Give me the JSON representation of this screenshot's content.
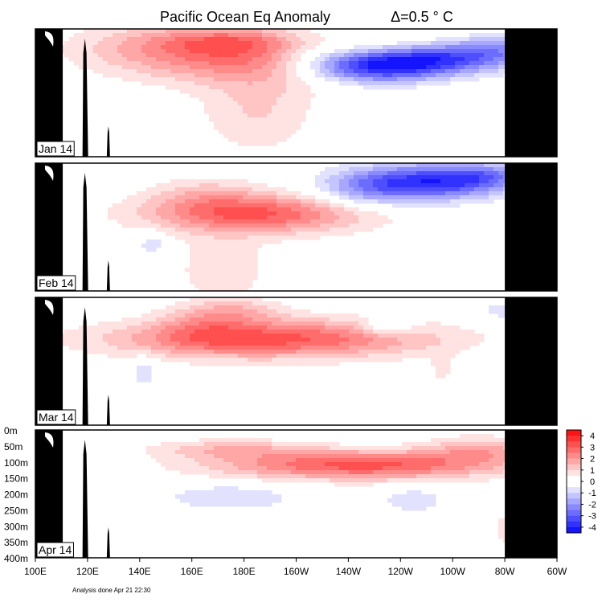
{
  "chart_data": {
    "type": "heatmap",
    "title": "Pacific Ocean Eq Anomaly",
    "interval_label": "Δ=0.5 ° C",
    "x_ticks": [
      "100E",
      "120E",
      "140E",
      "160E",
      "180E",
      "160W",
      "140W",
      "120W",
      "100W",
      "80W",
      "60W"
    ],
    "x_range": [
      100,
      300
    ],
    "y_ticks": [
      "0m",
      "50m",
      "100m",
      "150m",
      "200m",
      "250m",
      "300m",
      "350m",
      "400m"
    ],
    "y_range": [
      0,
      400
    ],
    "colorbar": {
      "ticks": [
        "4",
        "3",
        "2",
        "1",
        "0",
        "-1",
        "-2",
        "-3",
        "-4"
      ],
      "range": [
        -4.5,
        4.5
      ],
      "step": 0.5
    },
    "footer": "Analysis done Apr 21 22:30",
    "panels": [
      {
        "label": "Jan 14",
        "features": [
          {
            "lon": 185,
            "depth": 80,
            "w": 44,
            "h": 90,
            "amp": 2.5
          },
          {
            "lon": 175,
            "depth": 40,
            "w": 28,
            "h": 35,
            "amp": 1.0
          },
          {
            "lon": 145,
            "depth": 60,
            "w": 35,
            "h": 80,
            "amp": 1.0
          },
          {
            "lon": 185,
            "depth": 260,
            "w": 22,
            "h": 130,
            "amp": 1.0
          },
          {
            "lon": 230,
            "depth": 120,
            "w": 26,
            "h": 50,
            "amp": -3.8
          },
          {
            "lon": 255,
            "depth": 95,
            "w": 30,
            "h": 45,
            "amp": -2.8
          },
          {
            "lon": 275,
            "depth": 60,
            "w": 18,
            "h": 40,
            "amp": -1.5
          },
          {
            "lon": 205,
            "depth": 60,
            "w": 20,
            "h": 70,
            "amp": -1.2
          }
        ]
      },
      {
        "label": "Feb 14",
        "features": [
          {
            "lon": 185,
            "depth": 160,
            "w": 42,
            "h": 60,
            "amp": 3.0
          },
          {
            "lon": 165,
            "depth": 100,
            "w": 22,
            "h": 60,
            "amp": 1.0
          },
          {
            "lon": 172,
            "depth": 330,
            "w": 18,
            "h": 110,
            "amp": 0.9
          },
          {
            "lon": 250,
            "depth": 60,
            "w": 28,
            "h": 55,
            "amp": -3.8
          },
          {
            "lon": 273,
            "depth": 40,
            "w": 15,
            "h": 40,
            "amp": -1.5
          },
          {
            "lon": 225,
            "depth": 90,
            "w": 18,
            "h": 60,
            "amp": -1.2
          },
          {
            "lon": 145,
            "depth": 250,
            "w": 5,
            "h": 40,
            "amp": -1.0
          }
        ]
      },
      {
        "label": "Mar 14",
        "features": [
          {
            "lon": 190,
            "depth": 130,
            "w": 60,
            "h": 60,
            "amp": 3.2
          },
          {
            "lon": 165,
            "depth": 80,
            "w": 18,
            "h": 70,
            "amp": 1.0
          },
          {
            "lon": 178,
            "depth": 40,
            "w": 18,
            "h": 40,
            "amp": 1.0
          },
          {
            "lon": 235,
            "depth": 95,
            "w": 10,
            "h": 25,
            "amp": -1.3
          },
          {
            "lon": 280,
            "depth": 40,
            "w": 8,
            "h": 25,
            "amp": -1.0
          },
          {
            "lon": 142,
            "depth": 230,
            "w": 5,
            "h": 50,
            "amp": -0.9
          },
          {
            "lon": 256,
            "depth": 220,
            "w": 4,
            "h": 50,
            "amp": 0.8
          }
        ]
      },
      {
        "label": "Apr 14",
        "features": [
          {
            "lon": 225,
            "depth": 110,
            "w": 55,
            "h": 45,
            "amp": 3.2
          },
          {
            "lon": 175,
            "depth": 60,
            "w": 30,
            "h": 30,
            "amp": 1.3
          },
          {
            "lon": 270,
            "depth": 60,
            "w": 20,
            "h": 40,
            "amp": 1.5
          },
          {
            "lon": 175,
            "depth": 210,
            "w": 25,
            "h": 40,
            "amp": -1.0
          },
          {
            "lon": 245,
            "depth": 220,
            "w": 12,
            "h": 40,
            "amp": -0.9
          },
          {
            "lon": 282,
            "depth": 310,
            "w": 6,
            "h": 50,
            "amp": 1.0
          }
        ]
      }
    ]
  }
}
